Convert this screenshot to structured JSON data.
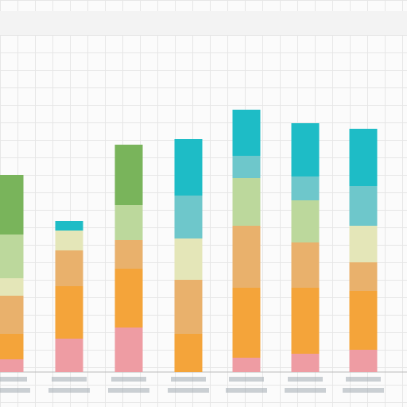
{
  "chart_data": {
    "type": "stacked-bar",
    "categories": [
      null,
      null,
      null,
      null,
      null,
      null,
      null
    ],
    "ylim": [
      0,
      468
    ],
    "series": [
      {
        "color": "#ee9ca3",
        "values": [
          16,
          42,
          56,
          0,
          18,
          23,
          28
        ]
      },
      {
        "color": "#f4a43a",
        "values": [
          32,
          66,
          74,
          48,
          88,
          83,
          74
        ]
      },
      {
        "color": "#e9b16c",
        "values": [
          48,
          45,
          36,
          68,
          78,
          57,
          36
        ]
      },
      {
        "color": "#e4e6b8",
        "values": [
          22,
          25,
          0,
          52,
          0,
          0,
          46
        ]
      },
      {
        "color": "#bcd89c",
        "values": [
          55,
          0,
          44,
          0,
          60,
          53,
          0
        ]
      },
      {
        "color": "#6ec7cb",
        "values": [
          0,
          0,
          0,
          54,
          28,
          30,
          50
        ]
      },
      {
        "color": "#1ebcc6",
        "values": [
          0,
          12,
          0,
          71,
          58,
          67,
          72
        ]
      },
      {
        "color": "#79b45b",
        "values": [
          75,
          0,
          76,
          0,
          0,
          0,
          0
        ]
      }
    ]
  }
}
